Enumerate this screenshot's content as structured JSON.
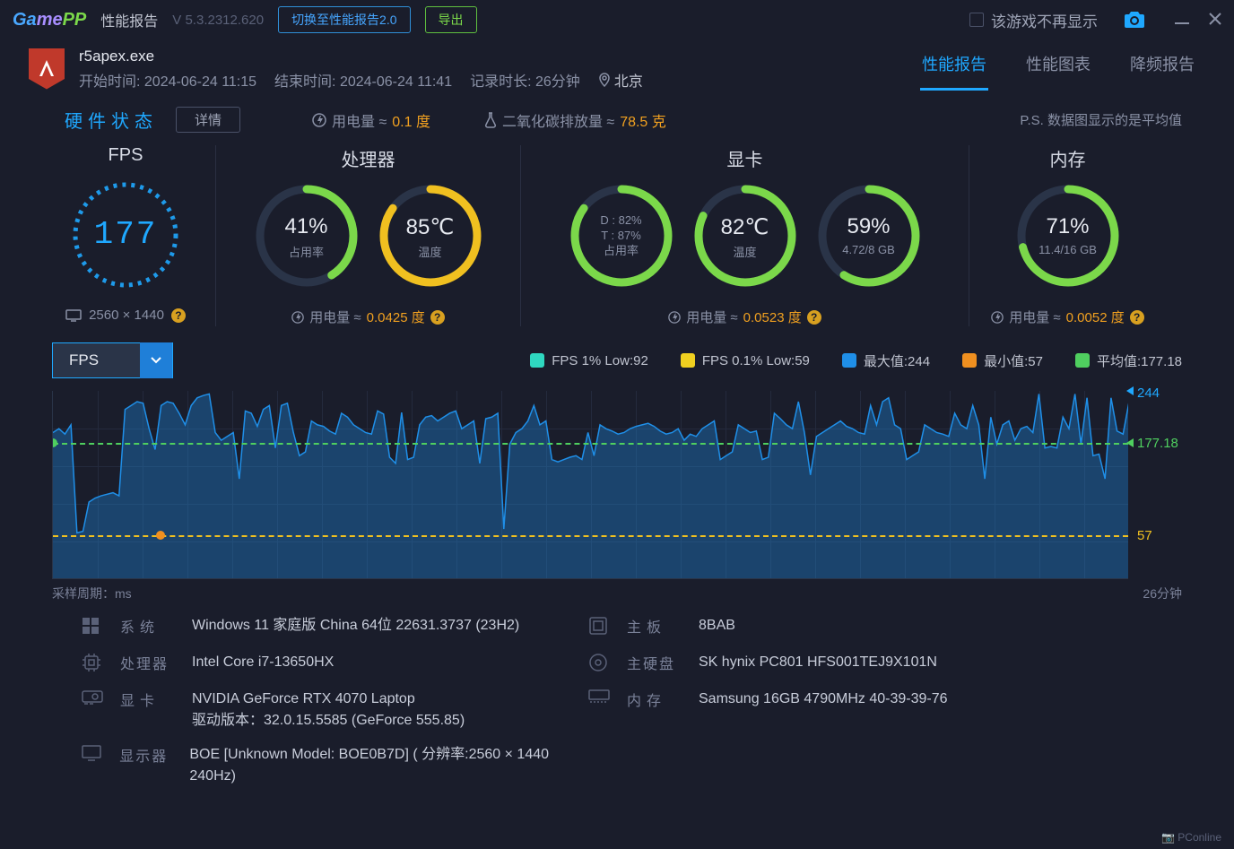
{
  "titlebar": {
    "logo_text": "GamePP",
    "title": "性能报告",
    "version": "V 5.3.2312.620",
    "switch_btn": "切换至性能报告2.0",
    "export_btn": "导出",
    "hide_game_label": "该游戏不再显示"
  },
  "session": {
    "exe": "r5apex.exe",
    "start_label": "开始时间:",
    "start_val": "2024-06-24 11:15",
    "end_label": "结束时间:",
    "end_val": "2024-06-24 11:41",
    "dur_label": "记录时长:",
    "dur_val": "26分钟",
    "location": "北京"
  },
  "tabs": {
    "t1": "性能报告",
    "t2": "性能图表",
    "t3": "降频报告"
  },
  "hw": {
    "title": "硬件状态",
    "detail_btn": "详情",
    "power_label": "用电量 ≈",
    "total_power": "0.1 度",
    "co2_label": "二氧化碳排放量 ≈",
    "co2_val": "78.5 克",
    "note": "P.S. 数据图显示的是平均值"
  },
  "gauges": {
    "fps": {
      "title": "FPS",
      "value": "177",
      "resolution": "2560 × 1440",
      "pct": 75,
      "stroke": "#1fa8ff"
    },
    "cpu": {
      "title": "处理器",
      "usage": {
        "big": "41%",
        "sub": "占用率",
        "pct": 41,
        "stroke": "#7bd84a"
      },
      "temp": {
        "big": "85℃",
        "sub": "温度",
        "pct": 85,
        "stroke": "#f0c020"
      },
      "power_val": "0.0425 度"
    },
    "gpu": {
      "title": "显卡",
      "usage": {
        "line1": "D : 82%",
        "line2": "T : 87%",
        "sub": "占用率",
        "pct": 85,
        "stroke": "#7bd84a"
      },
      "temp": {
        "big": "82℃",
        "sub": "温度",
        "pct": 82,
        "stroke": "#7bd84a"
      },
      "vram": {
        "big": "59%",
        "sub": "4.72/8 GB",
        "pct": 59,
        "stroke": "#7bd84a"
      },
      "power_val": "0.0523 度"
    },
    "mem": {
      "title": "内存",
      "usage": {
        "big": "71%",
        "sub": "11.4/16 GB",
        "pct": 71,
        "stroke": "#7bd84a"
      },
      "power_val": "0.0052 度"
    }
  },
  "chart": {
    "dropdown": "FPS",
    "legend": {
      "low1": {
        "color": "#2fd8c0",
        "text": "FPS 1% Low:92"
      },
      "low01": {
        "color": "#f0d020",
        "text": "FPS 0.1% Low:59"
      },
      "max": {
        "color": "#1f8fe8",
        "text": "最大值:244"
      },
      "min": {
        "color": "#f09020",
        "text": "最小值:57"
      },
      "avg": {
        "color": "#4fcf5f",
        "text": "平均值:177.18"
      }
    },
    "y_max": 244,
    "y_avg": 177.18,
    "y_min": 57,
    "ylab_max": "244",
    "ylab_avg": "177.18",
    "ylab_min": "57",
    "axis_left": "采样周期：ms",
    "axis_right": "26分钟",
    "area_color": "#1f8fe8",
    "background": "#1a1d2b",
    "grid_color": "#242a3d",
    "data": [
      190,
      195,
      188,
      200,
      60,
      62,
      100,
      105,
      108,
      110,
      112,
      108,
      220,
      225,
      230,
      228,
      195,
      168,
      225,
      230,
      228,
      215,
      200,
      225,
      235,
      238,
      240,
      190,
      180,
      185,
      190,
      130,
      218,
      215,
      198,
      220,
      225,
      170,
      225,
      228,
      190,
      160,
      165,
      205,
      200,
      198,
      192,
      188,
      215,
      210,
      200,
      195,
      190,
      188,
      218,
      214,
      158,
      150,
      216,
      155,
      158,
      200,
      210,
      212,
      205,
      210,
      215,
      218,
      195,
      200,
      205,
      150,
      208,
      210,
      215,
      65,
      175,
      190,
      195,
      205,
      225,
      200,
      205,
      155,
      152,
      155,
      158,
      160,
      155,
      190,
      160,
      200,
      195,
      192,
      188,
      190,
      195,
      198,
      200,
      202,
      198,
      192,
      188,
      190,
      195,
      180,
      188,
      185,
      195,
      200,
      205,
      155,
      160,
      165,
      200,
      195,
      190,
      192,
      155,
      158,
      215,
      208,
      200,
      195,
      230,
      190,
      135,
      185,
      190,
      195,
      200,
      205,
      198,
      195,
      190,
      188,
      225,
      200,
      230,
      235,
      200,
      195,
      155,
      160,
      165,
      200,
      195,
      190,
      188,
      185,
      215,
      200,
      195,
      225,
      200,
      130,
      210,
      175,
      200,
      205,
      180,
      195,
      198,
      190,
      240,
      170,
      172,
      170,
      210,
      195,
      240,
      175,
      235,
      160,
      162,
      130,
      235,
      192,
      188,
      230
    ]
  },
  "sys": {
    "os_lbl": "系统",
    "os_val": "Windows 11 家庭版 China 64位 22631.3737 (23H2)",
    "cpu_lbl": "处理器",
    "cpu_val": "Intel Core i7-13650HX",
    "gpu_lbl": "显卡",
    "gpu_val": "NVIDIA GeForce RTX 4070 Laptop",
    "gpu_drv": "驱动版本：32.0.15.5585 (GeForce 555.85)",
    "disp_lbl": "显示器",
    "disp_val": "BOE [Unknown Model: BOE0B7D] ( 分辨率:2560 × 1440 240Hz)",
    "mb_lbl": "主板",
    "mb_val": "8BAB",
    "disk_lbl": "主硬盘",
    "disk_val": "SK hynix PC801 HFS001TEJ9X101N",
    "mem_lbl": "内存",
    "mem_val": "Samsung 16GB 4790MHz 40-39-39-76"
  },
  "watermark": "📷 PConline"
}
